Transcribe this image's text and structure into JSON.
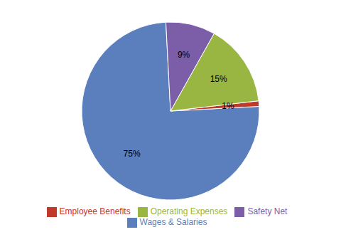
{
  "chart_data": {
    "type": "pie",
    "categories": [
      "Wages & Salaries",
      "Employee Benefits",
      "Operating Expenses",
      "Safety Net"
    ],
    "values": [
      75,
      1,
      15,
      9
    ],
    "value_labels": [
      "75%",
      "1%",
      "15%",
      "9%"
    ],
    "colors": [
      "#5b7fbc",
      "#c0392b",
      "#9ab642",
      "#7b5ea7"
    ],
    "data_labels": true,
    "legend": "bottom"
  }
}
